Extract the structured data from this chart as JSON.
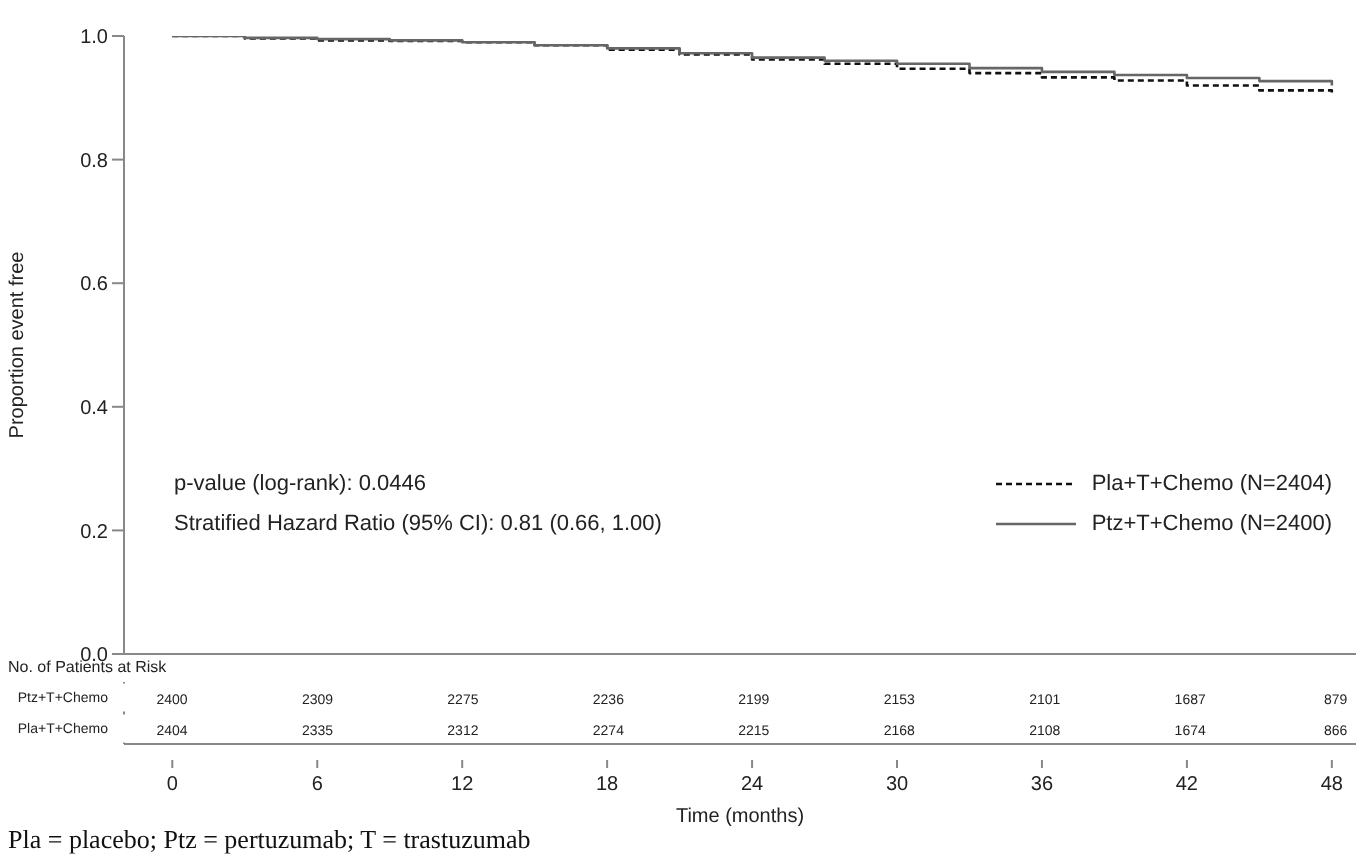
{
  "chart_data": [
    {
      "type": "step",
      "ylabel": "Proportion event free",
      "xlabel": "Time (months)",
      "xlim": [
        -2,
        49
      ],
      "xticks": [
        0,
        6,
        12,
        18,
        24,
        30,
        36,
        42,
        48
      ],
      "ylim": [
        0,
        1
      ],
      "yticks": [
        {
          "value": 0,
          "label": "0.0"
        },
        {
          "value": 0.2,
          "label": "0.2"
        },
        {
          "value": 0.4,
          "label": "0.4"
        },
        {
          "value": 0.6,
          "label": "0.6"
        },
        {
          "value": 0.8,
          "label": "0.8"
        },
        {
          "value": 1,
          "label": "1.0"
        }
      ],
      "legend": "bottom right",
      "x": [
        0,
        3,
        6,
        9,
        12,
        15,
        18,
        21,
        24,
        27,
        30,
        33,
        36,
        39,
        42,
        45,
        48
      ],
      "series": [
        {
          "name": "Pla+T+Chemo (N=2404)",
          "color": "#111111",
          "line_style": "dashed",
          "values": [
            1.0,
            0.996,
            0.993,
            0.992,
            0.99,
            0.985,
            0.978,
            0.97,
            0.962,
            0.955,
            0.947,
            0.94,
            0.933,
            0.928,
            0.92,
            0.912,
            0.905
          ]
        },
        {
          "name": "Ptz+T+Chemo (N=2400)",
          "color": "#666666",
          "line_style": "solid",
          "values": [
            1.0,
            0.997,
            0.995,
            0.993,
            0.99,
            0.985,
            0.98,
            0.972,
            0.965,
            0.96,
            0.955,
            0.948,
            0.942,
            0.937,
            0.932,
            0.927,
            0.92
          ]
        }
      ],
      "annotations": [
        "p-value (log-rank): 0.0446",
        "Stratified Hazard Ratio (95% CI): 0.81 (0.66, 1.00)"
      ]
    },
    {
      "type": "heatmap",
      "title": "No. of Patients at Risk",
      "data_labels": true,
      "categories": [
        null,
        null,
        null,
        null,
        null,
        null,
        null,
        null,
        null
      ],
      "y_categories": [
        "Ptz+T+Chemo",
        "Pla+T+Chemo"
      ],
      "cells": [
        [
          2400,
          2309,
          2275,
          2236,
          2199,
          2153,
          2101,
          1687,
          879
        ],
        [
          2404,
          2335,
          2312,
          2274,
          2215,
          2168,
          2108,
          1674,
          866
        ]
      ],
      "annotations": [
        "Pla = placebo; Ptz = pertuzumab; T = trastuzumab"
      ]
    }
  ]
}
